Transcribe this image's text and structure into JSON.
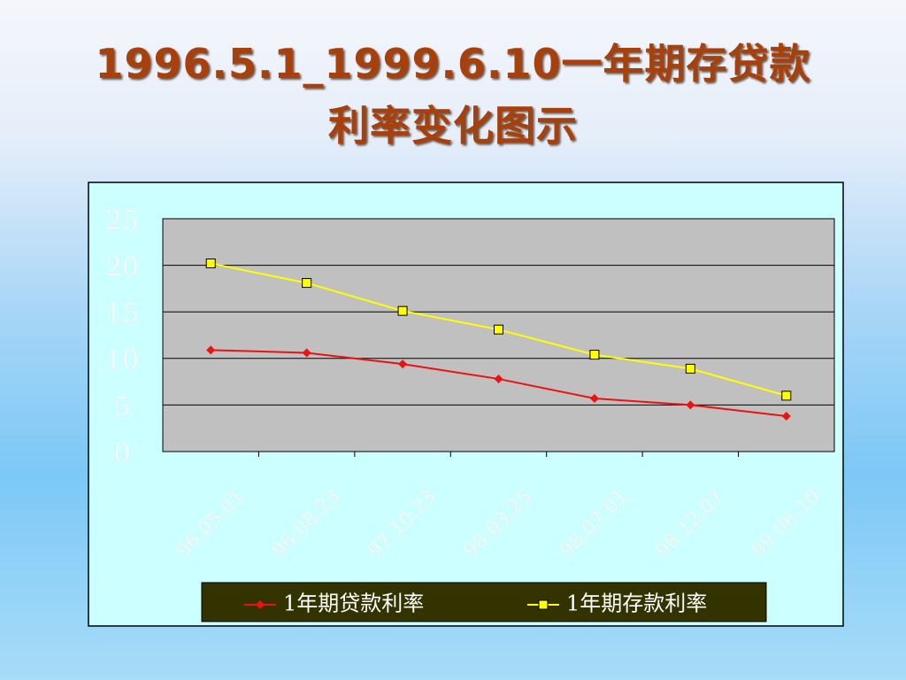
{
  "chart_data": {
    "type": "line",
    "title": [
      "1996.5.1_1999.6.10一年期存贷款",
      "利率变化图示"
    ],
    "categories": [
      "96.05.01",
      "96.08.23",
      "97.10.23",
      "98.03.25",
      "98.07.01",
      "98.12.07",
      "99.06.10"
    ],
    "series": [
      {
        "name": "1年期贷款利率",
        "color": "#ee1111",
        "marker": "diamond",
        "values": [
          10.9,
          10.6,
          9.4,
          7.8,
          5.7,
          5.0,
          3.8
        ]
      },
      {
        "name": "1年期存款利率",
        "color": "#ffff00",
        "marker": "square",
        "values": [
          20.2,
          18.1,
          15.1,
          13.1,
          10.4,
          8.9,
          6.0
        ]
      }
    ],
    "ylim": [
      0,
      25
    ],
    "yticks": [
      0,
      5,
      10,
      15,
      20,
      25
    ],
    "grid": true,
    "legend": "bottom"
  }
}
